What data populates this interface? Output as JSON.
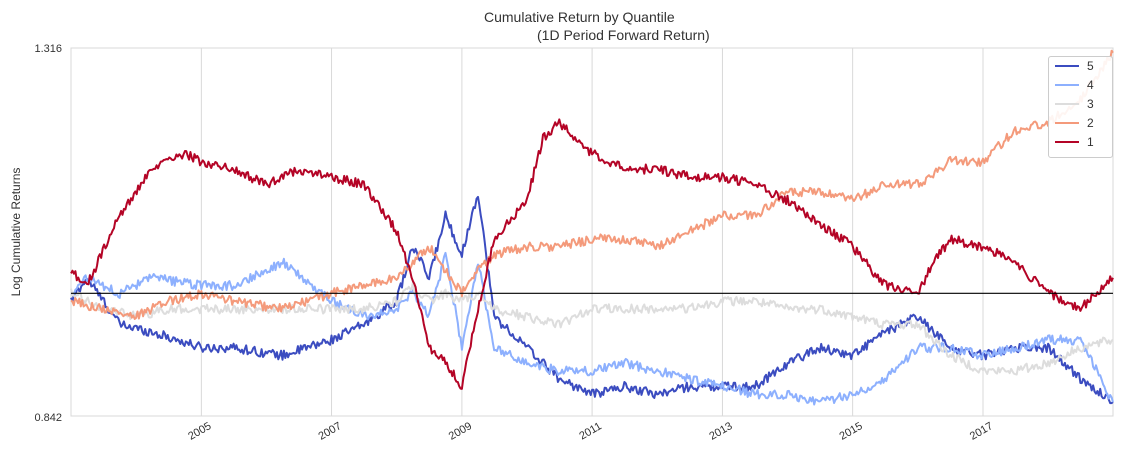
{
  "chart_data": {
    "type": "line",
    "title": "Cumulative Return by Quantile",
    "subtitle": "(1D Period Forward Return)",
    "ylabel": "Log Cumulative Returns",
    "xlabel": "",
    "ylim": [
      0.842,
      1.316
    ],
    "y_ticks": [
      "1.316",
      "0.842"
    ],
    "x_ticks": [
      "2005",
      "2007",
      "2009",
      "2011",
      "2013",
      "2015",
      "2017"
    ],
    "xlim": [
      "2003-01-01",
      "2018-12-31"
    ],
    "reference_line": 1.0,
    "grid": "vertical",
    "legend_position": "top-right",
    "series": [
      {
        "name": "5",
        "color": "#3b4cc0",
        "x": [
          "2003-01-01",
          "2003-04-01",
          "2003-10-01",
          "2004-04-01",
          "2005-01-01",
          "2005-07-01",
          "2006-04-01",
          "2007-01-01",
          "2007-07-01",
          "2008-01-01",
          "2008-04-01",
          "2008-07-01",
          "2008-10-01",
          "2009-01-01",
          "2009-04-01",
          "2009-07-01",
          "2010-01-01",
          "2010-07-01",
          "2011-01-01",
          "2011-07-01",
          "2012-01-01",
          "2012-07-01",
          "2013-01-01",
          "2013-07-01",
          "2014-01-01",
          "2014-07-01",
          "2015-01-01",
          "2015-07-01",
          "2016-01-01",
          "2016-07-01",
          "2017-01-01",
          "2017-07-01",
          "2018-01-01",
          "2018-07-01",
          "2018-12-31"
        ],
        "values": [
          0.99,
          1.02,
          0.96,
          0.95,
          0.93,
          0.93,
          0.92,
          0.94,
          0.96,
          0.99,
          1.06,
          1.02,
          1.1,
          1.05,
          1.13,
          0.97,
          0.93,
          0.89,
          0.87,
          0.88,
          0.87,
          0.88,
          0.88,
          0.88,
          0.91,
          0.93,
          0.92,
          0.95,
          0.97,
          0.93,
          0.92,
          0.93,
          0.93,
          0.89,
          0.86
        ]
      },
      {
        "name": "4",
        "color": "#8db0fe",
        "x": [
          "2003-01-01",
          "2003-04-01",
          "2003-10-01",
          "2004-04-01",
          "2005-01-01",
          "2005-07-01",
          "2006-04-01",
          "2007-01-01",
          "2007-07-01",
          "2008-01-01",
          "2008-04-01",
          "2008-07-01",
          "2008-10-01",
          "2009-01-01",
          "2009-04-01",
          "2009-07-01",
          "2010-01-01",
          "2010-07-01",
          "2011-01-01",
          "2011-07-01",
          "2012-01-01",
          "2012-07-01",
          "2013-01-01",
          "2013-07-01",
          "2014-01-01",
          "2014-07-01",
          "2015-01-01",
          "2015-07-01",
          "2016-01-01",
          "2016-07-01",
          "2017-01-01",
          "2017-07-01",
          "2018-01-01",
          "2018-07-01",
          "2018-12-31"
        ],
        "values": [
          1.0,
          1.02,
          1.0,
          1.02,
          1.01,
          1.01,
          1.04,
          0.99,
          0.97,
          0.98,
          1.0,
          0.97,
          1.05,
          0.93,
          1.04,
          0.93,
          0.91,
          0.9,
          0.9,
          0.91,
          0.9,
          0.89,
          0.88,
          0.87,
          0.87,
          0.86,
          0.87,
          0.89,
          0.93,
          0.93,
          0.92,
          0.93,
          0.94,
          0.94,
          0.86
        ]
      },
      {
        "name": "3",
        "color": "#dddddd",
        "x": [
          "2003-01-01",
          "2003-07-01",
          "2004-01-01",
          "2004-07-01",
          "2005-01-01",
          "2005-07-01",
          "2006-04-01",
          "2007-01-01",
          "2007-07-01",
          "2008-01-01",
          "2008-04-01",
          "2008-07-01",
          "2008-10-01",
          "2009-01-01",
          "2009-04-01",
          "2009-07-01",
          "2010-01-01",
          "2010-07-01",
          "2011-01-01",
          "2011-07-01",
          "2012-01-01",
          "2012-07-01",
          "2013-01-01",
          "2013-07-01",
          "2014-01-01",
          "2014-07-01",
          "2015-01-01",
          "2015-07-01",
          "2016-01-01",
          "2016-07-01",
          "2017-01-01",
          "2017-07-01",
          "2018-01-01",
          "2018-07-01",
          "2018-12-31"
        ],
        "values": [
          1.0,
          0.98,
          0.97,
          0.98,
          0.98,
          0.98,
          0.98,
          0.98,
          0.98,
          0.99,
          1.01,
          0.99,
          1.0,
          0.99,
          1.0,
          0.98,
          0.97,
          0.96,
          0.98,
          0.98,
          0.98,
          0.98,
          0.99,
          0.99,
          0.98,
          0.98,
          0.97,
          0.96,
          0.96,
          0.92,
          0.9,
          0.9,
          0.91,
          0.93,
          0.94
        ]
      },
      {
        "name": "2",
        "color": "#f49a7b",
        "x": [
          "2003-01-01",
          "2003-07-01",
          "2004-01-01",
          "2004-07-01",
          "2005-01-01",
          "2005-07-01",
          "2006-04-01",
          "2007-01-01",
          "2007-07-01",
          "2008-01-01",
          "2008-04-01",
          "2008-07-01",
          "2008-10-01",
          "2009-01-01",
          "2009-04-01",
          "2009-07-01",
          "2010-01-01",
          "2010-07-01",
          "2011-01-01",
          "2011-07-01",
          "2012-01-01",
          "2012-07-01",
          "2013-01-01",
          "2013-07-01",
          "2014-01-01",
          "2014-07-01",
          "2015-01-01",
          "2015-07-01",
          "2016-01-01",
          "2016-07-01",
          "2017-01-01",
          "2017-07-01",
          "2018-01-01",
          "2018-07-01",
          "2018-12-31"
        ],
        "values": [
          0.99,
          0.98,
          0.97,
          0.99,
          1.0,
          0.99,
          0.98,
          1.0,
          1.01,
          1.02,
          1.04,
          1.06,
          1.03,
          1.0,
          1.03,
          1.05,
          1.06,
          1.06,
          1.07,
          1.07,
          1.06,
          1.08,
          1.1,
          1.1,
          1.13,
          1.13,
          1.12,
          1.14,
          1.14,
          1.17,
          1.17,
          1.21,
          1.22,
          1.25,
          1.31
        ]
      },
      {
        "name": "1",
        "color": "#b40426",
        "x": [
          "2003-01-01",
          "2003-04-01",
          "2003-10-01",
          "2004-04-01",
          "2004-10-01",
          "2005-01-01",
          "2005-07-01",
          "2006-01-01",
          "2006-07-01",
          "2007-01-01",
          "2007-07-01",
          "2007-10-01",
          "2008-01-01",
          "2008-04-01",
          "2008-07-01",
          "2008-10-01",
          "2009-01-01",
          "2009-04-01",
          "2009-07-01",
          "2010-01-01",
          "2010-04-01",
          "2010-07-01",
          "2011-01-01",
          "2011-07-01",
          "2012-01-01",
          "2012-07-01",
          "2013-01-01",
          "2013-07-01",
          "2014-01-01",
          "2014-07-01",
          "2015-01-01",
          "2015-07-01",
          "2016-01-01",
          "2016-04-01",
          "2016-07-01",
          "2017-01-01",
          "2017-07-01",
          "2018-01-01",
          "2018-07-01",
          "2018-12-31"
        ],
        "values": [
          1.03,
          1.01,
          1.1,
          1.16,
          1.18,
          1.17,
          1.16,
          1.14,
          1.16,
          1.15,
          1.14,
          1.11,
          1.08,
          1.02,
          0.93,
          0.91,
          0.88,
          0.98,
          1.07,
          1.12,
          1.2,
          1.22,
          1.18,
          1.16,
          1.16,
          1.15,
          1.15,
          1.14,
          1.12,
          1.09,
          1.06,
          1.01,
          1.0,
          1.04,
          1.07,
          1.06,
          1.04,
          1.0,
          0.98,
          1.02
        ]
      }
    ]
  }
}
